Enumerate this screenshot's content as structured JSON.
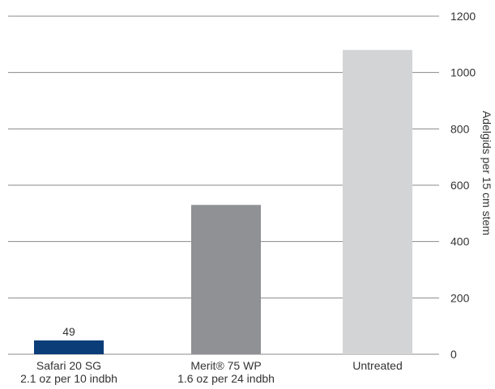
{
  "chart_data": {
    "type": "bar",
    "categories": [
      [
        "Safari 20 SG",
        "2.1 oz per 10 indbh"
      ],
      [
        "Merit® 75 WP",
        "1.6 oz per 24 indbh"
      ],
      [
        "Untreated"
      ]
    ],
    "values": [
      49,
      530,
      1080
    ],
    "data_labels": [
      "49",
      "",
      ""
    ],
    "bar_colors": [
      "#0b3d78",
      "#8f9194",
      "#d3d4d5"
    ],
    "title": "",
    "xlabel": "",
    "ylabel": "Adelgids per 15 cm stem",
    "ylim": [
      0,
      1200
    ],
    "yticks": [
      0,
      200,
      400,
      600,
      800,
      1000,
      1200
    ],
    "y_axis_side": "right",
    "grid": true,
    "grid_color": "#8a8a8a"
  }
}
